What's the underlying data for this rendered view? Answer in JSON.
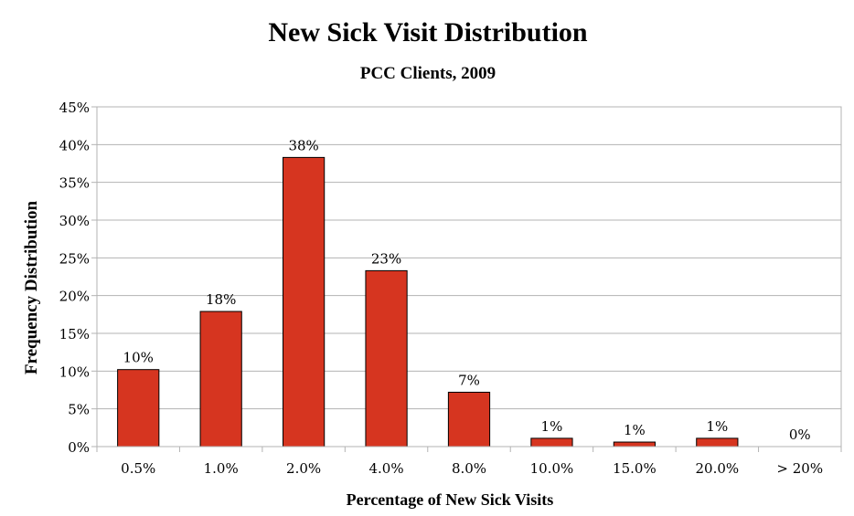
{
  "chart_data": {
    "type": "bar",
    "title": "New Sick Visit Distribution",
    "subtitle": "PCC Clients, 2009",
    "xlabel": "Percentage of New Sick Visits",
    "ylabel": "Frequency Distribution",
    "categories": [
      "0.5%",
      "1.0%",
      "2.0%",
      "4.0%",
      "8.0%",
      "10.0%",
      "15.0%",
      "20.0%",
      "> 20%"
    ],
    "values": [
      10.2,
      17.9,
      38.3,
      23.3,
      7.2,
      1.1,
      0.6,
      1.1,
      0
    ],
    "data_labels": [
      "10%",
      "18%",
      "38%",
      "23%",
      "7%",
      "1%",
      "1%",
      "1%",
      "0%"
    ],
    "ylim": [
      0,
      45
    ],
    "yticks": [
      0,
      5,
      10,
      15,
      20,
      25,
      30,
      35,
      40,
      45
    ],
    "ytick_labels": [
      "0%",
      "5%",
      "10%",
      "15%",
      "20%",
      "25%",
      "30%",
      "35%",
      "40%",
      "45%"
    ],
    "grid": true,
    "legend": "none",
    "bar_color": "#d63520"
  }
}
